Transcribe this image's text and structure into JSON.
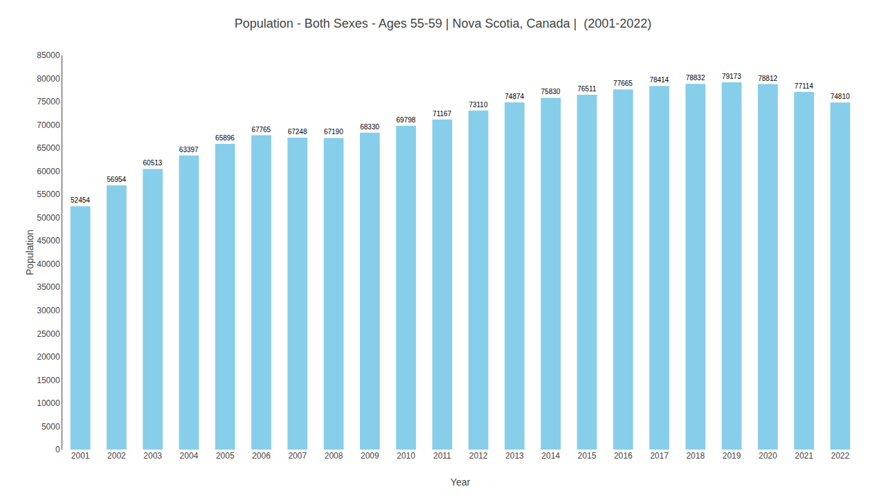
{
  "chart_data": {
    "type": "bar",
    "title": "Population - Both Sexes - Ages 55-59 | Nova Scotia, Canada |  (2001-2022)",
    "xlabel": "Year",
    "ylabel": "Population",
    "categories": [
      "2001",
      "2002",
      "2003",
      "2004",
      "2005",
      "2006",
      "2007",
      "2008",
      "2009",
      "2010",
      "2011",
      "2012",
      "2013",
      "2014",
      "2015",
      "2016",
      "2017",
      "2018",
      "2019",
      "2020",
      "2021",
      "2022"
    ],
    "values": [
      52454,
      56954,
      60513,
      63397,
      65896,
      67765,
      67248,
      67190,
      68330,
      69798,
      71167,
      73110,
      74874,
      75830,
      76511,
      77665,
      78414,
      78832,
      79173,
      78812,
      77114,
      74810
    ],
    "color": "#87CEEB",
    "ylim": [
      0,
      85000
    ],
    "yticks": [
      0,
      5000,
      10000,
      15000,
      20000,
      25000,
      30000,
      35000,
      40000,
      45000,
      50000,
      55000,
      60000,
      65000,
      70000,
      75000,
      80000,
      85000
    ],
    "grid": false,
    "data_labels": true
  }
}
